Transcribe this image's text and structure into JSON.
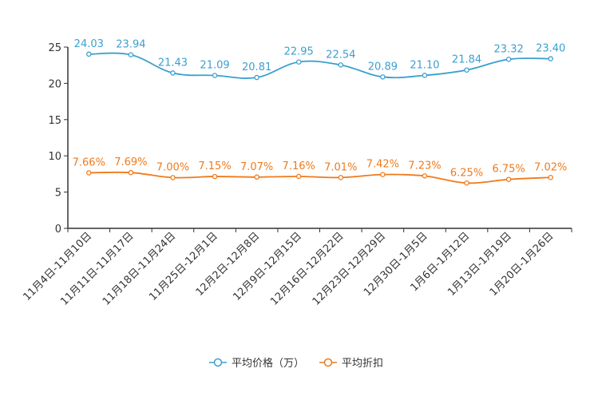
{
  "chart_data": {
    "type": "line",
    "categories": [
      "11月4日-11月10日",
      "11月11日-11月17日",
      "11月18日-11月24日",
      "11月25日-12月1日",
      "12月2日-12月8日",
      "12月9日-12月15日",
      "12月16日-12月22日",
      "12月23日-12月29日",
      "12月30日-1月5日",
      "1月6日-1月12日",
      "1月13日-1月19日",
      "1月20日-1月26日"
    ],
    "ylim": [
      0,
      25
    ],
    "yticks": [
      "0",
      "5",
      "10",
      "15",
      "20",
      "25"
    ],
    "series": [
      {
        "name": "平均价格（万）",
        "color": "#3ba0cf",
        "values": [
          24.03,
          23.94,
          21.43,
          21.09,
          20.81,
          22.95,
          22.54,
          20.89,
          21.1,
          21.84,
          23.32,
          23.4
        ],
        "labels": [
          "24.03",
          "23.94",
          "21.43",
          "21.09",
          "20.81",
          "22.95",
          "22.54",
          "20.89",
          "21.10",
          "21.84",
          "23.32",
          "23.40"
        ]
      },
      {
        "name": "平均折扣",
        "color": "#f07a1b",
        "values": [
          7.66,
          7.69,
          7.0,
          7.15,
          7.07,
          7.16,
          7.01,
          7.42,
          7.23,
          6.25,
          6.75,
          7.02
        ],
        "labels": [
          "7.66%",
          "7.69%",
          "7.00%",
          "7.15%",
          "7.07%",
          "7.16%",
          "7.01%",
          "7.42%",
          "7.23%",
          "6.25%",
          "6.75%",
          "7.02%"
        ]
      }
    ]
  }
}
